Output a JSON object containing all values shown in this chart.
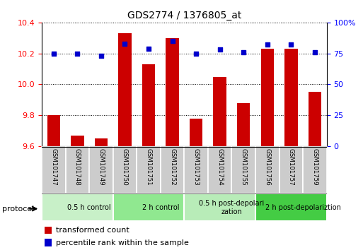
{
  "title": "GDS2774 / 1376805_at",
  "samples": [
    "GSM101747",
    "GSM101748",
    "GSM101749",
    "GSM101750",
    "GSM101751",
    "GSM101752",
    "GSM101753",
    "GSM101754",
    "GSM101755",
    "GSM101756",
    "GSM101757",
    "GSM101759"
  ],
  "red_values": [
    9.8,
    9.67,
    9.65,
    10.33,
    10.13,
    10.3,
    9.78,
    10.05,
    9.88,
    10.23,
    10.23,
    9.95
  ],
  "blue_values": [
    75,
    75,
    73,
    83,
    79,
    85,
    75,
    78,
    76,
    82,
    82,
    76
  ],
  "ylim_left": [
    9.6,
    10.4
  ],
  "ylim_right": [
    0,
    100
  ],
  "yticks_left": [
    9.6,
    9.8,
    10.0,
    10.2,
    10.4
  ],
  "yticks_right": [
    0,
    25,
    50,
    75,
    100
  ],
  "ytick_labels_right": [
    "0",
    "25",
    "50",
    "75",
    "100%"
  ],
  "groups": [
    {
      "label": "0.5 h control",
      "start": 0,
      "end": 3,
      "color": "#c8f0c8"
    },
    {
      "label": "2 h control",
      "start": 3,
      "end": 6,
      "color": "#90e890"
    },
    {
      "label": "0.5 h post-depolari\nzation",
      "start": 6,
      "end": 9,
      "color": "#b8ecb8"
    },
    {
      "label": "2 h post-depolariztion",
      "start": 9,
      "end": 12,
      "color": "#44cc44"
    }
  ],
  "bar_color": "#cc0000",
  "dot_color": "#0000cc",
  "bar_bottom": 9.6,
  "bar_width": 0.55,
  "dot_size": 18,
  "bg_plot": "#ffffff",
  "legend_red_label": "transformed count",
  "legend_blue_label": "percentile rank within the sample",
  "protocol_label": "protocol",
  "sample_box_color": "#cccccc",
  "fig_width": 5.13,
  "fig_height": 3.54,
  "dpi": 100
}
